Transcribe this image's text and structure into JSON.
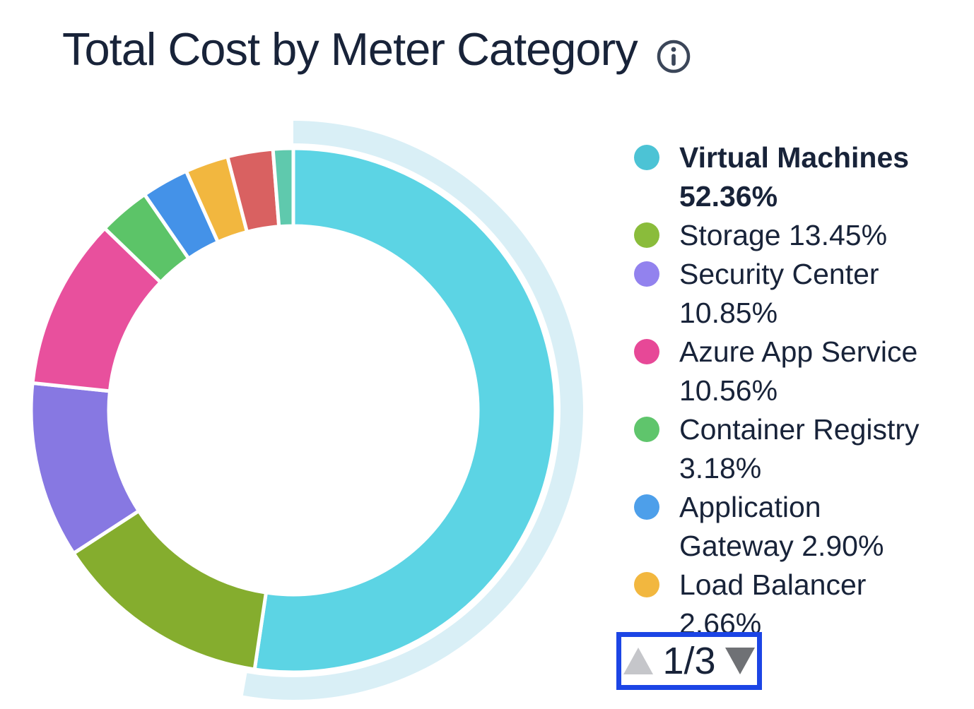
{
  "header": {
    "title": "Total Cost by Meter Category"
  },
  "chart_data": {
    "type": "pie",
    "subtype": "donut",
    "title": "Total Cost by Meter Category",
    "legend_position": "right",
    "start_angle_deg": 0,
    "clockwise": true,
    "emphasis_halo_color": "#D9EFF6",
    "slices": [
      {
        "label": "Virtual Machines",
        "pct": 52.36,
        "pct_label": "52.36%",
        "color": "#5CD4E4",
        "dot_color": "#4CC3D5",
        "emphasized": true,
        "legend_bold": true,
        "in_visible_legend": true
      },
      {
        "label": "Storage",
        "pct": 13.45,
        "pct_label": "13.45%",
        "color": "#85AD2E",
        "dot_color": "#8ABC3B",
        "in_visible_legend": true
      },
      {
        "label": "Security Center",
        "pct": 10.85,
        "pct_label": "10.85%",
        "color": "#8778E2",
        "dot_color": "#9282EE",
        "in_visible_legend": true
      },
      {
        "label": "Azure App Service",
        "pct": 10.56,
        "pct_label": "10.56%",
        "color": "#E8509D",
        "dot_color": "#E74897",
        "in_visible_legend": true
      },
      {
        "label": "Container Registry",
        "pct": 3.18,
        "pct_label": "3.18%",
        "color": "#5CC468",
        "dot_color": "#5FC56C",
        "in_visible_legend": true
      },
      {
        "label": "Application Gateway",
        "pct": 2.9,
        "pct_label": "2.90%",
        "color": "#4492E8",
        "dot_color": "#4D9FEA",
        "in_visible_legend": true
      },
      {
        "label": "Load Balancer",
        "pct": 2.66,
        "pct_label": "2.66%",
        "color": "#F2B73F",
        "dot_color": "#F2B73F",
        "in_visible_legend": true
      },
      {
        "label": "(unlabeled)",
        "pct": 2.8,
        "pct_label": "",
        "color": "#D96161",
        "estimated": true,
        "in_visible_legend": false
      },
      {
        "label": "(unlabeled)",
        "pct": 1.24,
        "pct_label": "",
        "color": "#5FC9AD",
        "estimated": true,
        "in_visible_legend": false
      }
    ]
  },
  "pagination": {
    "page_label": "1/3",
    "up_enabled": false,
    "down_enabled": true,
    "highlight_border_color": "#1C45E5"
  },
  "colors": {
    "text": "#182339",
    "background": "#FFFFFF"
  }
}
